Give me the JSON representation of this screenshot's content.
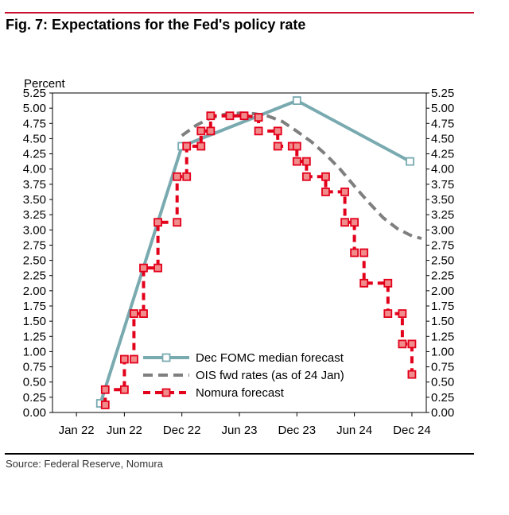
{
  "figure": {
    "title": "Fig. 7: Expectations for the Fed's policy rate",
    "source": "Source: Federal Reserve, Nomura"
  },
  "colors": {
    "fomc": "#79aab0",
    "ois": "#7f7f7f",
    "nomura": "#e3001b",
    "marker_fill": "#f08c8c",
    "rule_red": "#c8102e"
  },
  "chart_data": {
    "type": "line",
    "ylabel": "Percent",
    "ylim": [
      0,
      5.25
    ],
    "y_ticks": [
      "0.00",
      "0.25",
      "0.50",
      "0.75",
      "1.00",
      "1.25",
      "1.50",
      "1.75",
      "2.00",
      "2.25",
      "2.50",
      "2.75",
      "3.00",
      "3.25",
      "3.50",
      "3.75",
      "4.00",
      "4.25",
      "4.50",
      "4.75",
      "5.00",
      "5.25"
    ],
    "x_ticks": [
      {
        "label": "Jan 22",
        "t": 0
      },
      {
        "label": "Jun 22",
        "t": 5
      },
      {
        "label": "Dec 22",
        "t": 11
      },
      {
        "label": "Jun 23",
        "t": 17
      },
      {
        "label": "Dec 23",
        "t": 23
      },
      {
        "label": "Jun 24",
        "t": 29
      },
      {
        "label": "Dec 24",
        "t": 35
      }
    ],
    "xlim": [
      -2.5,
      36.5
    ],
    "series": [
      {
        "name": "Dec FOMC median forecast",
        "key": "fomc",
        "style": "solid",
        "markers": true,
        "points": [
          [
            2.5,
            0.15
          ],
          [
            11,
            4.375
          ],
          [
            23,
            5.125
          ],
          [
            34.8,
            4.125
          ]
        ]
      },
      {
        "name": "OIS fwd rates (as of 24 Jan)",
        "key": "ois",
        "style": "dashed",
        "markers": false,
        "points": [
          [
            11,
            4.55
          ],
          [
            12.5,
            4.72
          ],
          [
            14,
            4.84
          ],
          [
            15.5,
            4.9
          ],
          [
            17,
            4.92
          ],
          [
            18.5,
            4.91
          ],
          [
            20,
            4.87
          ],
          [
            21.5,
            4.78
          ],
          [
            23,
            4.62
          ],
          [
            24.5,
            4.45
          ],
          [
            26,
            4.24
          ],
          [
            27.5,
            4.0
          ],
          [
            29,
            3.72
          ],
          [
            30.5,
            3.45
          ],
          [
            32,
            3.2
          ],
          [
            33.5,
            3.02
          ],
          [
            35,
            2.9
          ],
          [
            36,
            2.86
          ]
        ]
      },
      {
        "name": "Nomura forecast",
        "key": "nomura",
        "style": "dashed",
        "markers": true,
        "points": [
          [
            3,
            0.125
          ],
          [
            3,
            0.375
          ],
          [
            5,
            0.375
          ],
          [
            5,
            0.875
          ],
          [
            6,
            0.875
          ],
          [
            6,
            1.625
          ],
          [
            7,
            1.625
          ],
          [
            7,
            2.375
          ],
          [
            8.5,
            2.375
          ],
          [
            8.5,
            3.125
          ],
          [
            10.5,
            3.125
          ],
          [
            10.5,
            3.875
          ],
          [
            11.5,
            3.875
          ],
          [
            11.5,
            4.375
          ],
          [
            13,
            4.375
          ],
          [
            13,
            4.625
          ],
          [
            14,
            4.625
          ],
          [
            14,
            4.875
          ],
          [
            16,
            4.875
          ],
          [
            17.5,
            4.875
          ],
          [
            19,
            4.85
          ],
          [
            19,
            4.625
          ],
          [
            21,
            4.625
          ],
          [
            21,
            4.375
          ],
          [
            22.5,
            4.375
          ],
          [
            23,
            4.375
          ],
          [
            23,
            4.125
          ],
          [
            24,
            4.125
          ],
          [
            24,
            3.875
          ],
          [
            26,
            3.875
          ],
          [
            26,
            3.625
          ],
          [
            28,
            3.625
          ],
          [
            28,
            3.125
          ],
          [
            29,
            3.125
          ],
          [
            29,
            2.625
          ],
          [
            30,
            2.625
          ],
          [
            30,
            2.125
          ],
          [
            32.5,
            2.125
          ],
          [
            32.5,
            1.625
          ],
          [
            34,
            1.625
          ],
          [
            34,
            1.125
          ],
          [
            35,
            1.125
          ],
          [
            35,
            0.625
          ]
        ]
      }
    ],
    "legend": "bottom-center"
  }
}
